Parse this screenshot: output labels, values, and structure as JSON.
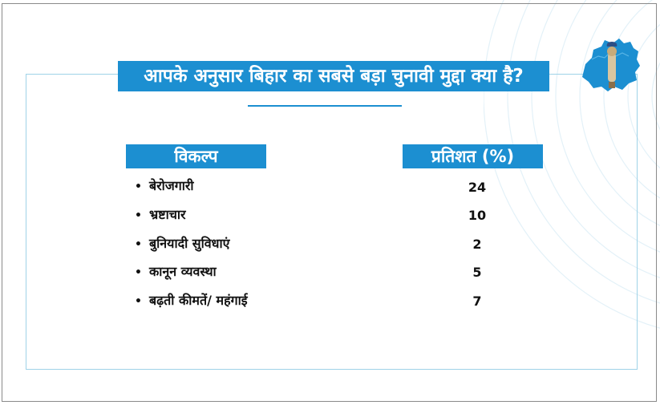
{
  "title": "आपके अनुसार बिहार का सबसे बड़ा चुनावी मुद्दा क्या है?",
  "colors": {
    "accent": "#1c8fd1",
    "frame": "#9fd3e8",
    "text": "#111111"
  },
  "icons": {
    "logo": "bihar-map-icon"
  },
  "chart_data": {
    "type": "table",
    "columns": [
      "विकल्प",
      "प्रतिशत (%)"
    ],
    "rows": [
      {
        "label": "बेरोजगारी",
        "value": "24"
      },
      {
        "label": "भ्रष्टाचार",
        "value": "10"
      },
      {
        "label": "बुनियादी सुविधाएं",
        "value": "2"
      },
      {
        "label": "कानून व्यवस्था",
        "value": "5"
      },
      {
        "label": "बढ़ती कीमतें/ महंगाई",
        "value": "7"
      }
    ]
  }
}
